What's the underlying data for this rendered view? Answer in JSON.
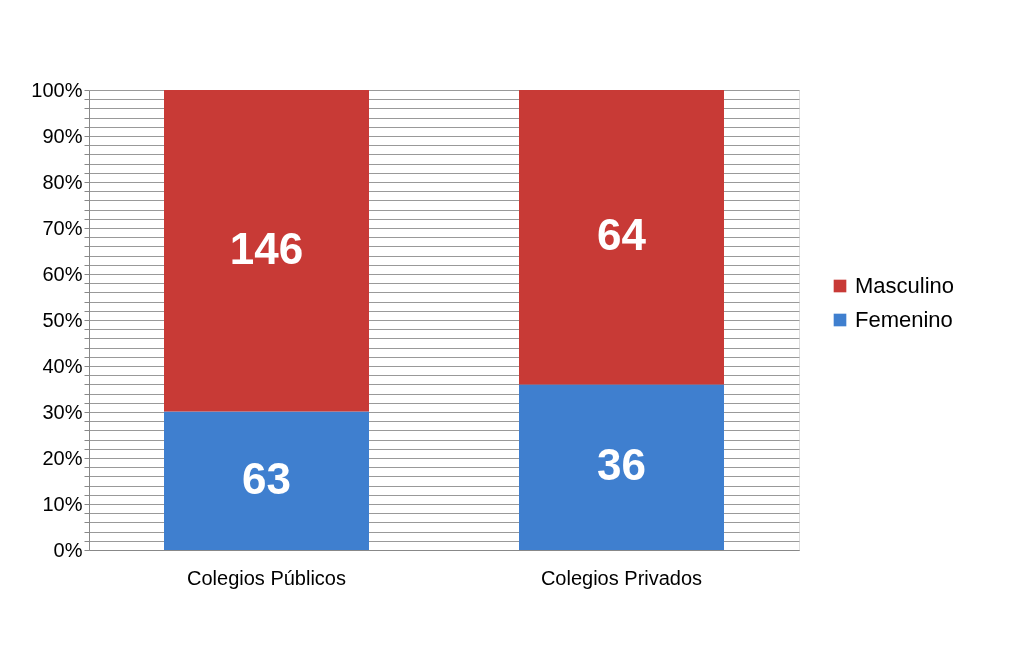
{
  "chart_data": {
    "type": "bar",
    "stacked": true,
    "categories": [
      "Colegios Públicos",
      "Colegios  Privados"
    ],
    "series": [
      {
        "name": "Femenino",
        "color": "#3f7fcf",
        "values": [
          30.1,
          36
        ]
      },
      {
        "name": "Masculino",
        "color": "#c83a36",
        "values": [
          69.9,
          64
        ]
      }
    ],
    "annotations": [
      "63",
      "36",
      "146",
      "64"
    ],
    "ylim": [
      0,
      100
    ],
    "yticks": [
      {
        "value": 0,
        "label": "0%"
      },
      {
        "value": 2,
        "label": null
      },
      {
        "value": 4,
        "label": null
      },
      {
        "value": 6,
        "label": null
      },
      {
        "value": 8,
        "label": null
      },
      {
        "value": 10,
        "label": "10%"
      },
      {
        "value": 12,
        "label": null
      },
      {
        "value": 14,
        "label": null
      },
      {
        "value": 16,
        "label": null
      },
      {
        "value": 18,
        "label": null
      },
      {
        "value": 20,
        "label": "20%"
      },
      {
        "value": 22,
        "label": null
      },
      {
        "value": 24,
        "label": null
      },
      {
        "value": 26,
        "label": null
      },
      {
        "value": 28,
        "label": null
      },
      {
        "value": 30,
        "label": "30%"
      },
      {
        "value": 32,
        "label": null
      },
      {
        "value": 34,
        "label": null
      },
      {
        "value": 36,
        "label": null
      },
      {
        "value": 38,
        "label": null
      },
      {
        "value": 40,
        "label": "40%"
      },
      {
        "value": 42,
        "label": null
      },
      {
        "value": 44,
        "label": null
      },
      {
        "value": 46,
        "label": null
      },
      {
        "value": 48,
        "label": null
      },
      {
        "value": 50,
        "label": "50%"
      },
      {
        "value": 52,
        "label": null
      },
      {
        "value": 54,
        "label": null
      },
      {
        "value": 56,
        "label": null
      },
      {
        "value": 58,
        "label": null
      },
      {
        "value": 60,
        "label": "60%"
      },
      {
        "value": 62,
        "label": null
      },
      {
        "value": 64,
        "label": null
      },
      {
        "value": 66,
        "label": null
      },
      {
        "value": 68,
        "label": null
      },
      {
        "value": 70,
        "label": "70%"
      },
      {
        "value": 72,
        "label": null
      },
      {
        "value": 74,
        "label": null
      },
      {
        "value": 76,
        "label": null
      },
      {
        "value": 78,
        "label": null
      },
      {
        "value": 80,
        "label": "80%"
      },
      {
        "value": 82,
        "label": null
      },
      {
        "value": 84,
        "label": null
      },
      {
        "value": 86,
        "label": null
      },
      {
        "value": 88,
        "label": null
      },
      {
        "value": 90,
        "label": "90%"
      },
      {
        "value": 92,
        "label": null
      },
      {
        "value": 94,
        "label": null
      },
      {
        "value": 96,
        "label": null
      },
      {
        "value": 98,
        "label": null
      },
      {
        "value": 100,
        "label": "100%"
      }
    ],
    "grid": "y",
    "legend": "right"
  }
}
